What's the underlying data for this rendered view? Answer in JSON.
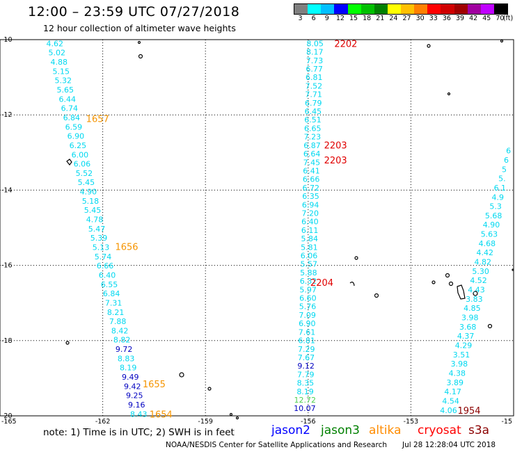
{
  "header": {
    "title": "12:00 – 23:59 UTC 07/27/2018",
    "subtitle": "12 hour collection of altimeter wave heights"
  },
  "legend": {
    "unit_label": "(ft)",
    "bins": [
      {
        "label": "3",
        "color": "#7f7f7f"
      },
      {
        "label": "6",
        "color": "#00ffff"
      },
      {
        "label": "9",
        "color": "#00bfff"
      },
      {
        "label": "12",
        "color": "#0000ff"
      },
      {
        "label": "15",
        "color": "#00ff00"
      },
      {
        "label": "18",
        "color": "#00c000"
      },
      {
        "label": "21",
        "color": "#008000"
      },
      {
        "label": "24",
        "color": "#ffff00"
      },
      {
        "label": "27",
        "color": "#ffc000"
      },
      {
        "label": "30",
        "color": "#ff8000"
      },
      {
        "label": "33",
        "color": "#ff0000"
      },
      {
        "label": "36",
        "color": "#d00000"
      },
      {
        "label": "39",
        "color": "#a00000"
      },
      {
        "label": "42",
        "color": "#a000a0"
      },
      {
        "label": "45",
        "color": "#c000ff"
      },
      {
        "label": "70",
        "color": "#000000"
      }
    ]
  },
  "map": {
    "lon_ticks": [
      "-165",
      "-162",
      "-159",
      "-156",
      "-153",
      "-15"
    ],
    "lat_ticks": [
      "-10",
      "-12",
      "-14",
      "-16",
      "-18",
      "-20"
    ],
    "colors": {
      "cyan": "#00d8f0",
      "blue": "#0000c0",
      "green": "#50d050",
      "orange": "#f59400",
      "red": "#e00000",
      "darkred": "#8b0000"
    },
    "times": [
      {
        "label": "1657",
        "color": "orange",
        "lon": -162.15,
        "lat": -12.1
      },
      {
        "label": "1656",
        "color": "orange",
        "lon": -161.3,
        "lat": -15.5
      },
      {
        "label": "1655",
        "color": "orange",
        "lon": -160.5,
        "lat": -19.15
      },
      {
        "label": "1654",
        "color": "orange",
        "lon": -160.3,
        "lat": -19.95
      },
      {
        "label": "2202",
        "color": "red",
        "lon": -154.9,
        "lat": -10.1
      },
      {
        "label": "2203",
        "color": "red",
        "lon": -155.2,
        "lat": -12.8
      },
      {
        "label": "2203",
        "color": "red",
        "lon": -155.2,
        "lat": -13.2
      },
      {
        "label": "2204",
        "color": "red",
        "lon": -155.6,
        "lat": -16.45
      },
      {
        "label": "1954",
        "color": "darkred",
        "lon": -151.3,
        "lat": -19.85
      }
    ],
    "track_a": {
      "start": {
        "lon": -163.4,
        "lat": -10.1
      },
      "end": {
        "lon": -160.95,
        "lat": -19.95
      },
      "points": [
        {
          "v": "4.62",
          "c": "cyan"
        },
        {
          "v": "5.02",
          "c": "cyan"
        },
        {
          "v": "4.88",
          "c": "cyan"
        },
        {
          "v": "5.15",
          "c": "cyan"
        },
        {
          "v": "5.32",
          "c": "cyan"
        },
        {
          "v": "5.65",
          "c": "cyan"
        },
        {
          "v": "6.44",
          "c": "cyan"
        },
        {
          "v": "6.74",
          "c": "cyan"
        },
        {
          "v": "6.84",
          "c": "cyan"
        },
        {
          "v": "6.59",
          "c": "cyan"
        },
        {
          "v": "6.90",
          "c": "cyan"
        },
        {
          "v": "6.25",
          "c": "cyan"
        },
        {
          "v": "6.00",
          "c": "cyan"
        },
        {
          "v": "6.06",
          "c": "cyan"
        },
        {
          "v": "5.52",
          "c": "cyan"
        },
        {
          "v": "5.45",
          "c": "cyan"
        },
        {
          "v": "4.90",
          "c": "cyan"
        },
        {
          "v": "5.18",
          "c": "cyan"
        },
        {
          "v": "5.45",
          "c": "cyan"
        },
        {
          "v": "4.78",
          "c": "cyan"
        },
        {
          "v": "5.47",
          "c": "cyan"
        },
        {
          "v": "5.39",
          "c": "cyan"
        },
        {
          "v": "5.13",
          "c": "cyan"
        },
        {
          "v": "5.74",
          "c": "cyan"
        },
        {
          "v": "6.66",
          "c": "cyan"
        },
        {
          "v": "6.40",
          "c": "cyan"
        },
        {
          "v": "6.55",
          "c": "cyan"
        },
        {
          "v": "6.84",
          "c": "cyan"
        },
        {
          "v": "7.31",
          "c": "cyan"
        },
        {
          "v": "8.21",
          "c": "cyan"
        },
        {
          "v": "7.88",
          "c": "cyan"
        },
        {
          "v": "8.42",
          "c": "cyan"
        },
        {
          "v": "8.82",
          "c": "cyan"
        },
        {
          "v": "9.72",
          "c": "blue"
        },
        {
          "v": "8.83",
          "c": "cyan"
        },
        {
          "v": "8.19",
          "c": "cyan"
        },
        {
          "v": "9.49",
          "c": "blue"
        },
        {
          "v": "9.42",
          "c": "blue"
        },
        {
          "v": "9.25",
          "c": "blue"
        },
        {
          "v": "9.16",
          "c": "blue"
        },
        {
          "v": "8.43",
          "c": "cyan"
        }
      ]
    },
    "track_b": {
      "start": {
        "lon": -155.8,
        "lat": -10.1
      },
      "end": {
        "lon": -156.1,
        "lat": -19.8
      },
      "points": [
        {
          "v": "8.05",
          "c": "cyan"
        },
        {
          "v": "8.17",
          "c": "cyan"
        },
        {
          "v": "7.73",
          "c": "cyan"
        },
        {
          "v": "6.77",
          "c": "cyan"
        },
        {
          "v": "6.81",
          "c": "cyan"
        },
        {
          "v": "7.52",
          "c": "cyan"
        },
        {
          "v": "7.71",
          "c": "cyan"
        },
        {
          "v": "6.79",
          "c": "cyan"
        },
        {
          "v": "6.45",
          "c": "cyan"
        },
        {
          "v": "6.51",
          "c": "cyan"
        },
        {
          "v": "6.65",
          "c": "cyan"
        },
        {
          "v": "7.23",
          "c": "cyan"
        },
        {
          "v": "6.87",
          "c": "cyan"
        },
        {
          "v": "6.64",
          "c": "cyan"
        },
        {
          "v": "7.45",
          "c": "cyan"
        },
        {
          "v": "6.41",
          "c": "cyan"
        },
        {
          "v": "6.66",
          "c": "cyan"
        },
        {
          "v": "6.72",
          "c": "cyan"
        },
        {
          "v": "6.35",
          "c": "cyan"
        },
        {
          "v": "6.94",
          "c": "cyan"
        },
        {
          "v": "7.20",
          "c": "cyan"
        },
        {
          "v": "6.40",
          "c": "cyan"
        },
        {
          "v": "6.11",
          "c": "cyan"
        },
        {
          "v": "5.84",
          "c": "cyan"
        },
        {
          "v": "5.81",
          "c": "cyan"
        },
        {
          "v": "6.06",
          "c": "cyan"
        },
        {
          "v": "5.57",
          "c": "cyan"
        },
        {
          "v": "5.88",
          "c": "cyan"
        },
        {
          "v": "6.32",
          "c": "cyan"
        },
        {
          "v": "5.97",
          "c": "cyan"
        },
        {
          "v": "6.60",
          "c": "cyan"
        },
        {
          "v": "5.76",
          "c": "cyan"
        },
        {
          "v": "7.09",
          "c": "cyan"
        },
        {
          "v": "6.90",
          "c": "cyan"
        },
        {
          "v": "7.61",
          "c": "cyan"
        },
        {
          "v": "6.81",
          "c": "cyan"
        },
        {
          "v": "7.29",
          "c": "cyan"
        },
        {
          "v": "7.67",
          "c": "cyan"
        },
        {
          "v": "9.12",
          "c": "blue"
        },
        {
          "v": "7.79",
          "c": "cyan"
        },
        {
          "v": "8.35",
          "c": "cyan"
        },
        {
          "v": "8.19",
          "c": "cyan"
        },
        {
          "v": "12.72",
          "c": "green"
        },
        {
          "v": "10.07",
          "c": "blue"
        }
      ]
    },
    "track_c": {
      "start": {
        "lon": -150.15,
        "lat": -12.95
      },
      "end": {
        "lon": -151.9,
        "lat": -19.85
      },
      "points": [
        {
          "v": "6",
          "c": "cyan"
        },
        {
          "v": "6",
          "c": "cyan"
        },
        {
          "v": "5",
          "c": "cyan"
        },
        {
          "v": "5.",
          "c": "cyan"
        },
        {
          "v": "6.1",
          "c": "cyan"
        },
        {
          "v": "4.9",
          "c": "cyan"
        },
        {
          "v": "5.3",
          "c": "cyan"
        },
        {
          "v": "5.68",
          "c": "cyan"
        },
        {
          "v": "4.90",
          "c": "cyan"
        },
        {
          "v": "5.63",
          "c": "cyan"
        },
        {
          "v": "4.68",
          "c": "cyan"
        },
        {
          "v": "4.42",
          "c": "cyan"
        },
        {
          "v": "4.82",
          "c": "cyan"
        },
        {
          "v": "5.30",
          "c": "cyan"
        },
        {
          "v": "4.52",
          "c": "cyan"
        },
        {
          "v": "4.43",
          "c": "cyan"
        },
        {
          "v": "3.83",
          "c": "cyan"
        },
        {
          "v": "4.85",
          "c": "cyan"
        },
        {
          "v": "3.98",
          "c": "cyan"
        },
        {
          "v": "3.68",
          "c": "cyan"
        },
        {
          "v": "4.37",
          "c": "cyan"
        },
        {
          "v": "4.29",
          "c": "cyan"
        },
        {
          "v": "3.51",
          "c": "cyan"
        },
        {
          "v": "3.98",
          "c": "cyan"
        },
        {
          "v": "4.38",
          "c": "cyan"
        },
        {
          "v": "3.89",
          "c": "cyan"
        },
        {
          "v": "4.17",
          "c": "cyan"
        },
        {
          "v": "4.54",
          "c": "cyan"
        },
        {
          "v": "4.06",
          "c": "cyan"
        }
      ]
    }
  },
  "footer": {
    "note": "note:  1) Time is in UTC;  2) SWH is in feet",
    "satellites": [
      {
        "label": "jason2",
        "color": "#0000ff"
      },
      {
        "label": "jason3",
        "color": "#008000"
      },
      {
        "label": "altika",
        "color": "#ff8c00"
      },
      {
        "label": "cryosat",
        "color": "#ff0000"
      },
      {
        "label": "s3a",
        "color": "#8b0000"
      }
    ],
    "credit": "NOAA/NESDIS Center for Satellite Applications and Research",
    "timestamp": "Jul 28 12:28:04 UTC 2018"
  }
}
